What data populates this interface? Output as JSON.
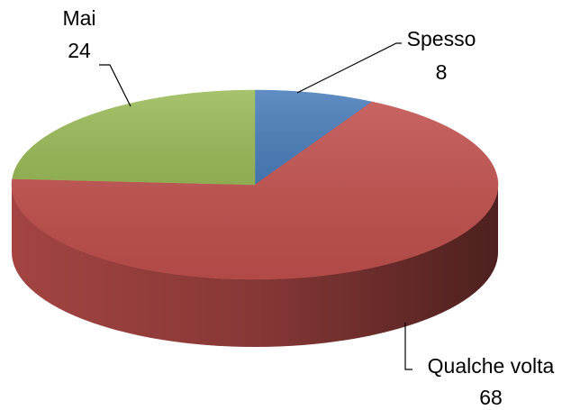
{
  "chart_data": {
    "type": "pie",
    "categories": [
      "Spesso",
      "Qualche volta",
      "Mai"
    ],
    "values": [
      8,
      68,
      24
    ],
    "colors": [
      "#4a7ebb",
      "#c0504d",
      "#9bbb59"
    ]
  }
}
